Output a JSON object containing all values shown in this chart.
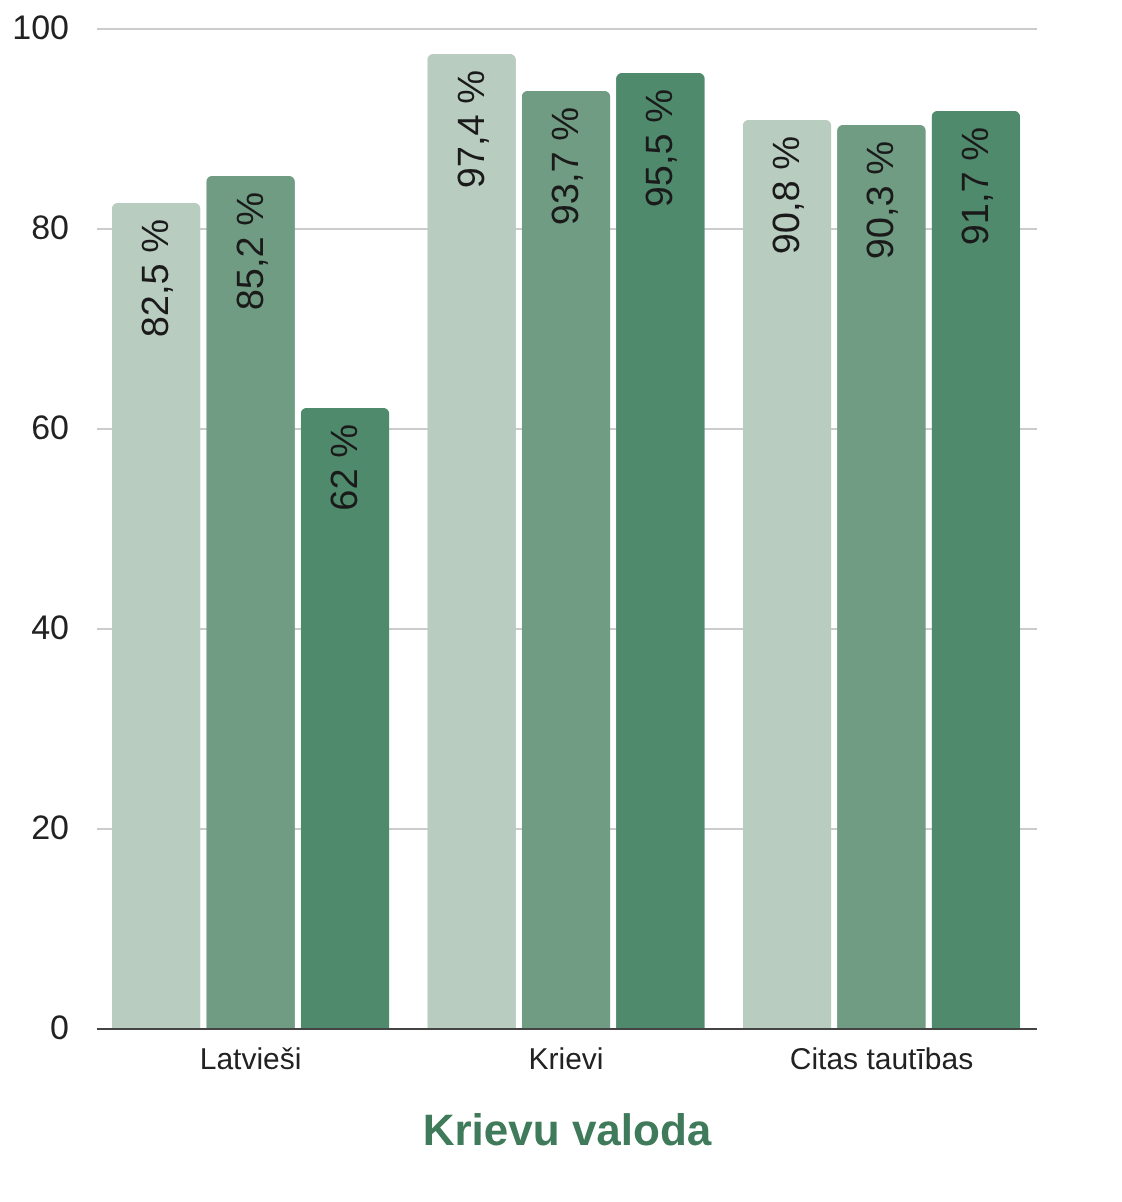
{
  "chart_data": {
    "type": "bar",
    "xlabel": "Krievu valoda",
    "categories": [
      "Latvieši",
      "Krievi",
      "Citas tautības"
    ],
    "series": [
      {
        "color": "#b8ccc0",
        "values": [
          82.5,
          97.4,
          90.8
        ],
        "value_labels": [
          "82,5 %",
          "97,4 %",
          "90,8 %"
        ]
      },
      {
        "color": "#6f9c82",
        "values": [
          85.2,
          93.7,
          90.3
        ],
        "value_labels": [
          "85,2 %",
          "93,7 %",
          "90,3 %"
        ]
      },
      {
        "color": "#508a6d",
        "values": [
          62,
          95.5,
          91.7
        ],
        "value_labels": [
          "62 %",
          "95,5 %",
          "91,7 %"
        ]
      }
    ],
    "ylim": [
      0,
      100
    ],
    "yticks": [
      0,
      20,
      40,
      60,
      80,
      100
    ],
    "grid": "y"
  }
}
